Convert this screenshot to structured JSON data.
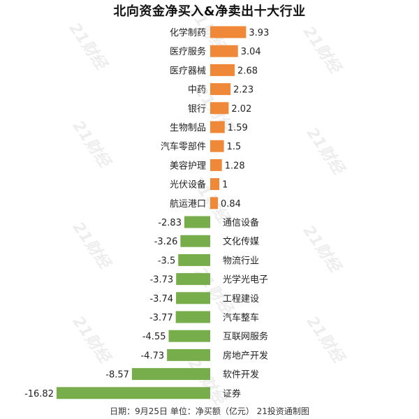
{
  "chart_data": {
    "type": "bar",
    "orientation": "horizontal",
    "title": "北向资金净买入&净卖出十大行业",
    "categories": [
      "化学制药",
      "医疗服务",
      "医疗器械",
      "中药",
      "银行",
      "生物制品",
      "汽车零部件",
      "美容护理",
      "光伏设备",
      "航运港口",
      "通信设备",
      "文化传媒",
      "物流行业",
      "光学光电子",
      "工程建设",
      "汽车整车",
      "互联网服务",
      "房地产开发",
      "软件开发",
      "证券"
    ],
    "values": [
      3.93,
      3.04,
      2.68,
      2.23,
      2.02,
      1.59,
      1.5,
      1.28,
      1,
      0.84,
      -2.83,
      -3.26,
      -3.5,
      -3.73,
      -3.74,
      -3.77,
      -4.55,
      -4.73,
      -8.57,
      -16.82
    ],
    "value_labels": [
      "3.93",
      "3.04",
      "2.68",
      "2.23",
      "2.02",
      "1.59",
      "1.5",
      "1.28",
      "1",
      "0.84",
      "-2.83",
      "-3.26",
      "-3.5",
      "-3.73",
      "-3.74",
      "-3.77",
      "-4.55",
      "-4.73",
      "-8.57",
      "-16.82"
    ],
    "colors": {
      "positive": "#F0883A",
      "negative": "#77AD4B"
    },
    "grid": false,
    "legend": "none",
    "footer": "日期：9月25日  单位：净买额（亿元）  21投资通制图"
  },
  "watermark": {
    "text": "21财经"
  }
}
